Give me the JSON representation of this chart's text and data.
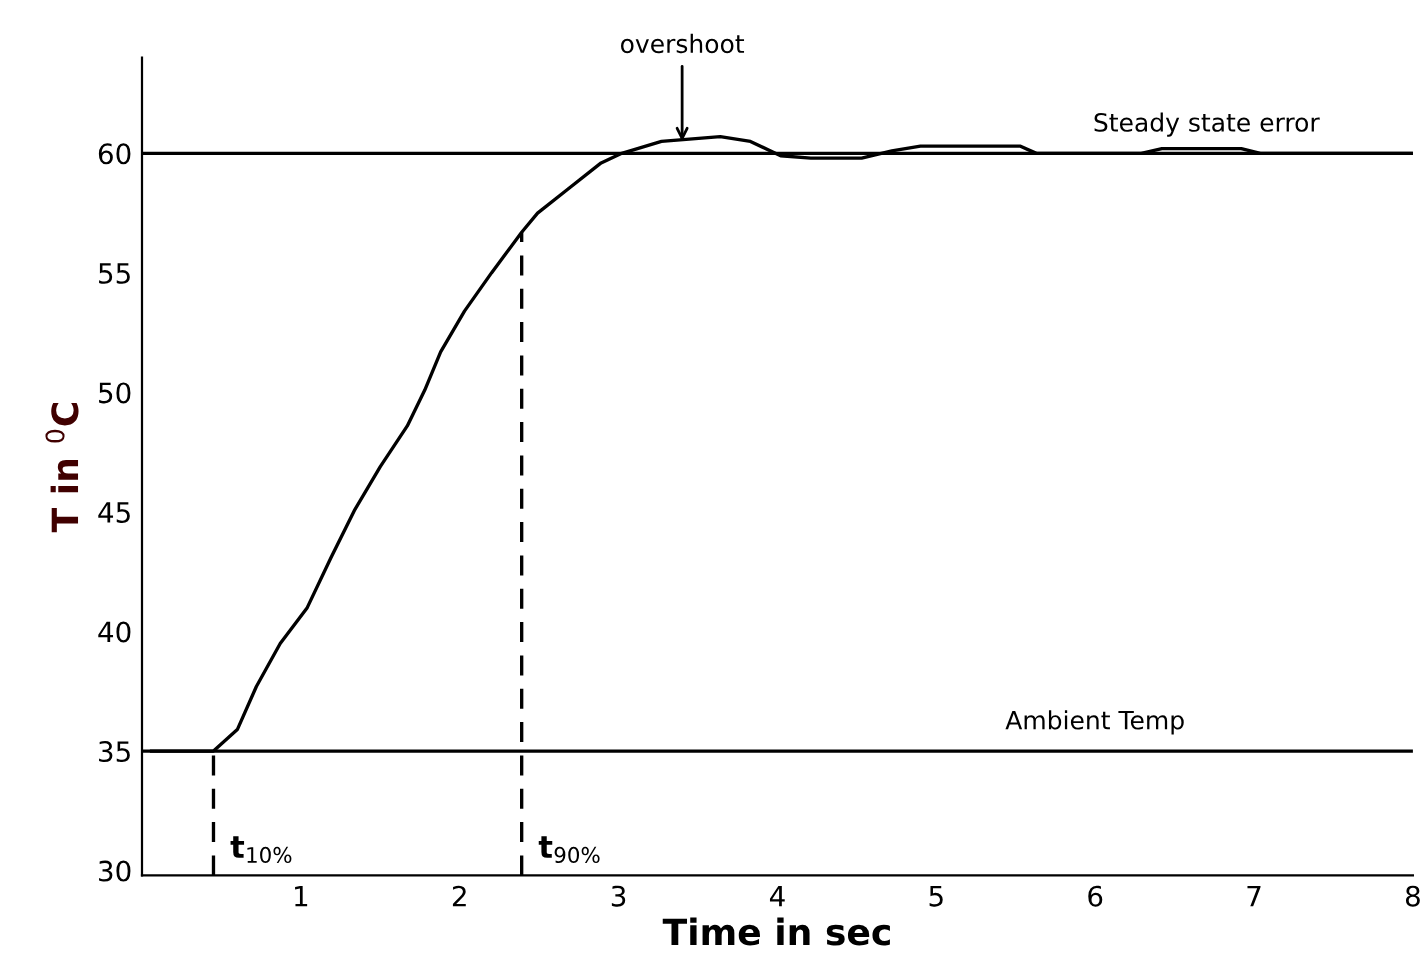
{
  "chart_data": {
    "type": "line",
    "xlabel": "Time in sec",
    "ylabel": "T in $^{0}$C",
    "x": [
      0.06,
      0.45,
      0.6,
      0.72,
      0.87,
      1.04,
      1.19,
      1.34,
      1.5,
      1.67,
      1.78,
      1.88,
      2.03,
      2.2,
      2.39,
      2.49,
      2.68,
      2.89,
      3.02,
      3.27,
      3.64,
      3.83,
      4.02,
      4.21,
      4.53,
      4.72,
      4.9,
      5.53,
      5.63,
      6.29,
      6.42,
      6.92,
      7.04,
      8.0
    ],
    "series": [
      {
        "color": "#000000",
        "values": [
          35.0,
          35.0,
          35.9,
          37.7,
          39.5,
          41.0,
          43.1,
          45.1,
          46.9,
          48.6,
          50.1,
          51.7,
          53.4,
          55.0,
          56.7,
          57.5,
          58.5,
          59.6,
          60.0,
          60.5,
          60.7,
          60.5,
          59.9,
          59.8,
          59.8,
          60.1,
          60.3,
          60.3,
          60.0,
          60.0,
          60.2,
          60.2,
          60.0,
          60.0
        ]
      }
    ],
    "xlim": [
      0,
      8
    ],
    "ylim": [
      29.8,
      64
    ],
    "xticks": [
      1,
      2,
      3,
      4,
      5,
      6,
      7,
      8
    ],
    "yticks": [
      30,
      35,
      40,
      45,
      50,
      55,
      60
    ],
    "grid": false,
    "legend": false,
    "marker": "none",
    "line_style": "solid",
    "ref_lines": [
      {
        "axis": "y",
        "value": 60,
        "label": "Steady state error",
        "color": "#000000",
        "line_style": "solid"
      },
      {
        "axis": "y",
        "value": 35,
        "label": "Ambient Temp",
        "color": "#000000",
        "line_style": "solid"
      },
      {
        "axis": "x",
        "value": 0.45,
        "label": "t$_{10%}$",
        "color": "#000000",
        "line_style": "dashed"
      },
      {
        "axis": "x",
        "value": 2.39,
        "label": "t$_{90%}$",
        "color": "#000000",
        "line_style": "dashed"
      }
    ],
    "annotations": [
      {
        "text": "overshoot",
        "x": 3.4,
        "y": 60.5
      }
    ]
  }
}
